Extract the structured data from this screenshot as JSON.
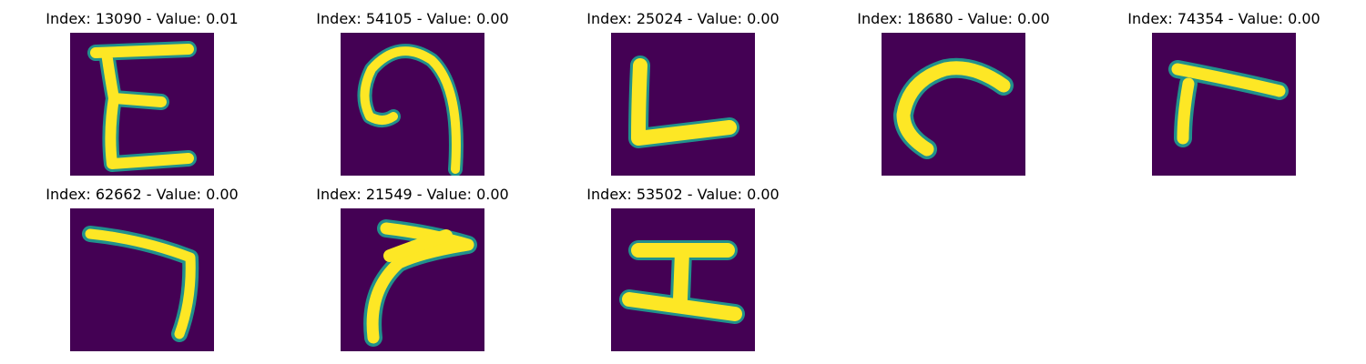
{
  "colors": {
    "background": "#440154",
    "stroke": "#fde725",
    "edge": "#21918c"
  },
  "panels": [
    {
      "index": "13090",
      "value": "0.01",
      "title": "Index: 13090 - Value: 0.01",
      "glyph": "letter-e"
    },
    {
      "index": "54105",
      "value": "0.00",
      "title": "Index: 54105 - Value: 0.00",
      "glyph": "hook-curve"
    },
    {
      "index": "25024",
      "value": "0.00",
      "title": "Index: 25024 - Value: 0.00",
      "glyph": "letter-l"
    },
    {
      "index": "18680",
      "value": "0.00",
      "title": "Index: 18680 - Value: 0.00",
      "glyph": "arc-curve"
    },
    {
      "index": "74354",
      "value": "0.00",
      "title": "Index: 74354 - Value: 0.00",
      "glyph": "letter-r"
    },
    {
      "index": "62662",
      "value": "0.00",
      "title": "Index: 62662 - Value: 0.00",
      "glyph": "number-seven"
    },
    {
      "index": "21549",
      "value": "0.00",
      "title": "Index: 21549 - Value: 0.00",
      "glyph": "curved-r"
    },
    {
      "index": "53502",
      "value": "0.00",
      "title": "Index: 53502 - Value: 0.00",
      "glyph": "letter-i"
    }
  ]
}
